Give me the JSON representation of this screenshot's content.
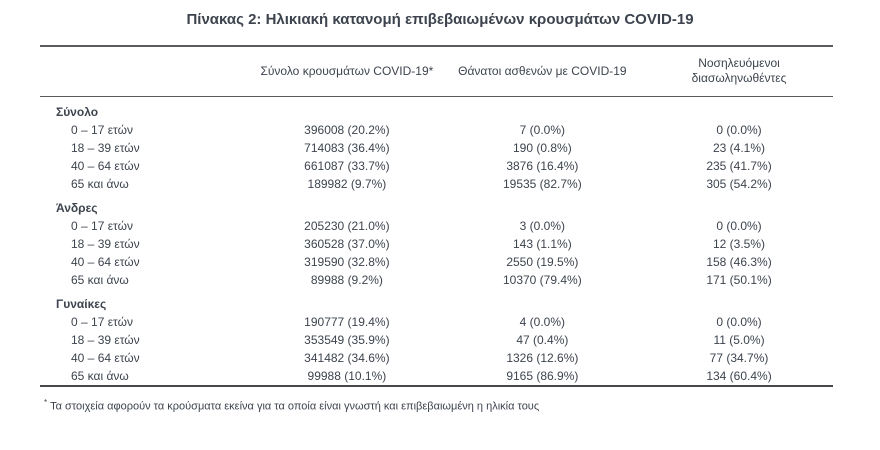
{
  "page": {
    "title": "Πίνακας 2: Ηλικιακή κατανομή επιβεβαιωμένων κρουσμάτων COVID-19"
  },
  "table": {
    "columns": {
      "row_label": "",
      "cases": "Σύνολο κρουσμάτων COVID-19*",
      "deaths": "Θάνατοι ασθενών με COVID-19",
      "intubated": "Νοσηλευόμενοι διασωληνωθέντες"
    },
    "sections": [
      {
        "label": "Σύνολο",
        "rows": [
          {
            "label": "0 – 17 ετών",
            "cases": "396008 (20.2%)",
            "deaths": "7 (0.0%)",
            "intubated": "0 (0.0%)"
          },
          {
            "label": "18 – 39 ετών",
            "cases": "714083 (36.4%)",
            "deaths": "190 (0.8%)",
            "intubated": "23 (4.1%)"
          },
          {
            "label": "40 – 64 ετών",
            "cases": "661087 (33.7%)",
            "deaths": "3876 (16.4%)",
            "intubated": "235 (41.7%)"
          },
          {
            "label": "65 και άνω",
            "cases": "189982 (9.7%)",
            "deaths": "19535 (82.7%)",
            "intubated": "305 (54.2%)"
          }
        ]
      },
      {
        "label": "Άνδρες",
        "rows": [
          {
            "label": "0 – 17 ετών",
            "cases": "205230 (21.0%)",
            "deaths": "3 (0.0%)",
            "intubated": "0 (0.0%)"
          },
          {
            "label": "18 – 39 ετών",
            "cases": "360528 (37.0%)",
            "deaths": "143 (1.1%)",
            "intubated": "12 (3.5%)"
          },
          {
            "label": "40 – 64 ετών",
            "cases": "319590 (32.8%)",
            "deaths": "2550 (19.5%)",
            "intubated": "158 (46.3%)"
          },
          {
            "label": "65 και άνω",
            "cases": "89988 (9.2%)",
            "deaths": "10370 (79.4%)",
            "intubated": "171 (50.1%)"
          }
        ]
      },
      {
        "label": "Γυναίκες",
        "rows": [
          {
            "label": "0 – 17 ετών",
            "cases": "190777 (19.4%)",
            "deaths": "4 (0.0%)",
            "intubated": "0 (0.0%)"
          },
          {
            "label": "18 – 39 ετών",
            "cases": "353549 (35.9%)",
            "deaths": "47 (0.4%)",
            "intubated": "11 (5.0%)"
          },
          {
            "label": "40 – 64 ετών",
            "cases": "341482 (34.6%)",
            "deaths": "1326 (12.6%)",
            "intubated": "77 (34.7%)"
          },
          {
            "label": "65 και άνω",
            "cases": "99988 (10.1%)",
            "deaths": "9165 (86.9%)",
            "intubated": "134 (60.4%)"
          }
        ]
      }
    ]
  },
  "footnote": {
    "marker": "*",
    "text": "Τα στοιχεία αφορούν τα κρούσματα εκείνα για τα οποία είναι γνωστή και επιβεβαιωμένη η ηλικία τους"
  },
  "colors": {
    "text": "#3d444e",
    "border": "#595b5e",
    "background": "#ffffff"
  }
}
